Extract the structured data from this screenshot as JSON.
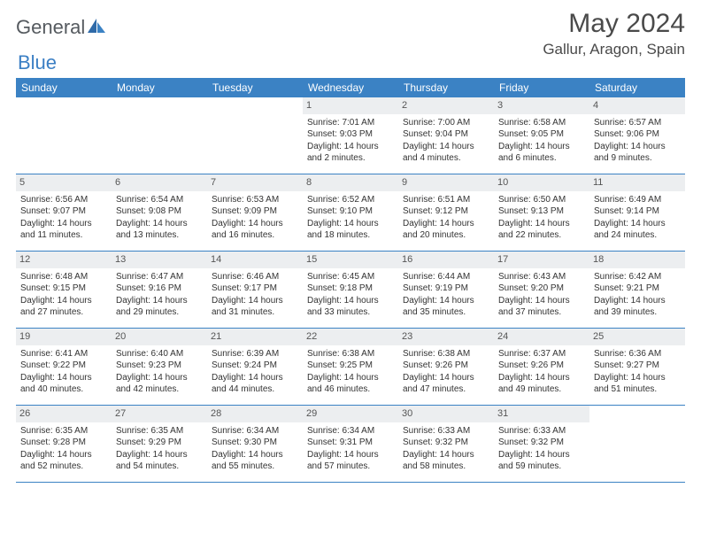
{
  "logo": {
    "word1": "General",
    "word2": "Blue"
  },
  "title": "May 2024",
  "location": "Gallur, Aragon, Spain",
  "weekdays": [
    "Sunday",
    "Monday",
    "Tuesday",
    "Wednesday",
    "Thursday",
    "Friday",
    "Saturday"
  ],
  "colors": {
    "header_bg": "#3b82c4",
    "daynum_bg": "#eceef0",
    "border": "#3b82c4",
    "text": "#333333",
    "title": "#4a4a4a"
  },
  "weeks": [
    [
      {
        "n": "",
        "empty": true
      },
      {
        "n": "",
        "empty": true
      },
      {
        "n": "",
        "empty": true
      },
      {
        "n": "1",
        "sunrise": "Sunrise: 7:01 AM",
        "sunset": "Sunset: 9:03 PM",
        "daylight1": "Daylight: 14 hours",
        "daylight2": "and 2 minutes."
      },
      {
        "n": "2",
        "sunrise": "Sunrise: 7:00 AM",
        "sunset": "Sunset: 9:04 PM",
        "daylight1": "Daylight: 14 hours",
        "daylight2": "and 4 minutes."
      },
      {
        "n": "3",
        "sunrise": "Sunrise: 6:58 AM",
        "sunset": "Sunset: 9:05 PM",
        "daylight1": "Daylight: 14 hours",
        "daylight2": "and 6 minutes."
      },
      {
        "n": "4",
        "sunrise": "Sunrise: 6:57 AM",
        "sunset": "Sunset: 9:06 PM",
        "daylight1": "Daylight: 14 hours",
        "daylight2": "and 9 minutes."
      }
    ],
    [
      {
        "n": "5",
        "sunrise": "Sunrise: 6:56 AM",
        "sunset": "Sunset: 9:07 PM",
        "daylight1": "Daylight: 14 hours",
        "daylight2": "and 11 minutes."
      },
      {
        "n": "6",
        "sunrise": "Sunrise: 6:54 AM",
        "sunset": "Sunset: 9:08 PM",
        "daylight1": "Daylight: 14 hours",
        "daylight2": "and 13 minutes."
      },
      {
        "n": "7",
        "sunrise": "Sunrise: 6:53 AM",
        "sunset": "Sunset: 9:09 PM",
        "daylight1": "Daylight: 14 hours",
        "daylight2": "and 16 minutes."
      },
      {
        "n": "8",
        "sunrise": "Sunrise: 6:52 AM",
        "sunset": "Sunset: 9:10 PM",
        "daylight1": "Daylight: 14 hours",
        "daylight2": "and 18 minutes."
      },
      {
        "n": "9",
        "sunrise": "Sunrise: 6:51 AM",
        "sunset": "Sunset: 9:12 PM",
        "daylight1": "Daylight: 14 hours",
        "daylight2": "and 20 minutes."
      },
      {
        "n": "10",
        "sunrise": "Sunrise: 6:50 AM",
        "sunset": "Sunset: 9:13 PM",
        "daylight1": "Daylight: 14 hours",
        "daylight2": "and 22 minutes."
      },
      {
        "n": "11",
        "sunrise": "Sunrise: 6:49 AM",
        "sunset": "Sunset: 9:14 PM",
        "daylight1": "Daylight: 14 hours",
        "daylight2": "and 24 minutes."
      }
    ],
    [
      {
        "n": "12",
        "sunrise": "Sunrise: 6:48 AM",
        "sunset": "Sunset: 9:15 PM",
        "daylight1": "Daylight: 14 hours",
        "daylight2": "and 27 minutes."
      },
      {
        "n": "13",
        "sunrise": "Sunrise: 6:47 AM",
        "sunset": "Sunset: 9:16 PM",
        "daylight1": "Daylight: 14 hours",
        "daylight2": "and 29 minutes."
      },
      {
        "n": "14",
        "sunrise": "Sunrise: 6:46 AM",
        "sunset": "Sunset: 9:17 PM",
        "daylight1": "Daylight: 14 hours",
        "daylight2": "and 31 minutes."
      },
      {
        "n": "15",
        "sunrise": "Sunrise: 6:45 AM",
        "sunset": "Sunset: 9:18 PM",
        "daylight1": "Daylight: 14 hours",
        "daylight2": "and 33 minutes."
      },
      {
        "n": "16",
        "sunrise": "Sunrise: 6:44 AM",
        "sunset": "Sunset: 9:19 PM",
        "daylight1": "Daylight: 14 hours",
        "daylight2": "and 35 minutes."
      },
      {
        "n": "17",
        "sunrise": "Sunrise: 6:43 AM",
        "sunset": "Sunset: 9:20 PM",
        "daylight1": "Daylight: 14 hours",
        "daylight2": "and 37 minutes."
      },
      {
        "n": "18",
        "sunrise": "Sunrise: 6:42 AM",
        "sunset": "Sunset: 9:21 PM",
        "daylight1": "Daylight: 14 hours",
        "daylight2": "and 39 minutes."
      }
    ],
    [
      {
        "n": "19",
        "sunrise": "Sunrise: 6:41 AM",
        "sunset": "Sunset: 9:22 PM",
        "daylight1": "Daylight: 14 hours",
        "daylight2": "and 40 minutes."
      },
      {
        "n": "20",
        "sunrise": "Sunrise: 6:40 AM",
        "sunset": "Sunset: 9:23 PM",
        "daylight1": "Daylight: 14 hours",
        "daylight2": "and 42 minutes."
      },
      {
        "n": "21",
        "sunrise": "Sunrise: 6:39 AM",
        "sunset": "Sunset: 9:24 PM",
        "daylight1": "Daylight: 14 hours",
        "daylight2": "and 44 minutes."
      },
      {
        "n": "22",
        "sunrise": "Sunrise: 6:38 AM",
        "sunset": "Sunset: 9:25 PM",
        "daylight1": "Daylight: 14 hours",
        "daylight2": "and 46 minutes."
      },
      {
        "n": "23",
        "sunrise": "Sunrise: 6:38 AM",
        "sunset": "Sunset: 9:26 PM",
        "daylight1": "Daylight: 14 hours",
        "daylight2": "and 47 minutes."
      },
      {
        "n": "24",
        "sunrise": "Sunrise: 6:37 AM",
        "sunset": "Sunset: 9:26 PM",
        "daylight1": "Daylight: 14 hours",
        "daylight2": "and 49 minutes."
      },
      {
        "n": "25",
        "sunrise": "Sunrise: 6:36 AM",
        "sunset": "Sunset: 9:27 PM",
        "daylight1": "Daylight: 14 hours",
        "daylight2": "and 51 minutes."
      }
    ],
    [
      {
        "n": "26",
        "sunrise": "Sunrise: 6:35 AM",
        "sunset": "Sunset: 9:28 PM",
        "daylight1": "Daylight: 14 hours",
        "daylight2": "and 52 minutes."
      },
      {
        "n": "27",
        "sunrise": "Sunrise: 6:35 AM",
        "sunset": "Sunset: 9:29 PM",
        "daylight1": "Daylight: 14 hours",
        "daylight2": "and 54 minutes."
      },
      {
        "n": "28",
        "sunrise": "Sunrise: 6:34 AM",
        "sunset": "Sunset: 9:30 PM",
        "daylight1": "Daylight: 14 hours",
        "daylight2": "and 55 minutes."
      },
      {
        "n": "29",
        "sunrise": "Sunrise: 6:34 AM",
        "sunset": "Sunset: 9:31 PM",
        "daylight1": "Daylight: 14 hours",
        "daylight2": "and 57 minutes."
      },
      {
        "n": "30",
        "sunrise": "Sunrise: 6:33 AM",
        "sunset": "Sunset: 9:32 PM",
        "daylight1": "Daylight: 14 hours",
        "daylight2": "and 58 minutes."
      },
      {
        "n": "31",
        "sunrise": "Sunrise: 6:33 AM",
        "sunset": "Sunset: 9:32 PM",
        "daylight1": "Daylight: 14 hours",
        "daylight2": "and 59 minutes."
      },
      {
        "n": "",
        "empty": true
      }
    ]
  ]
}
